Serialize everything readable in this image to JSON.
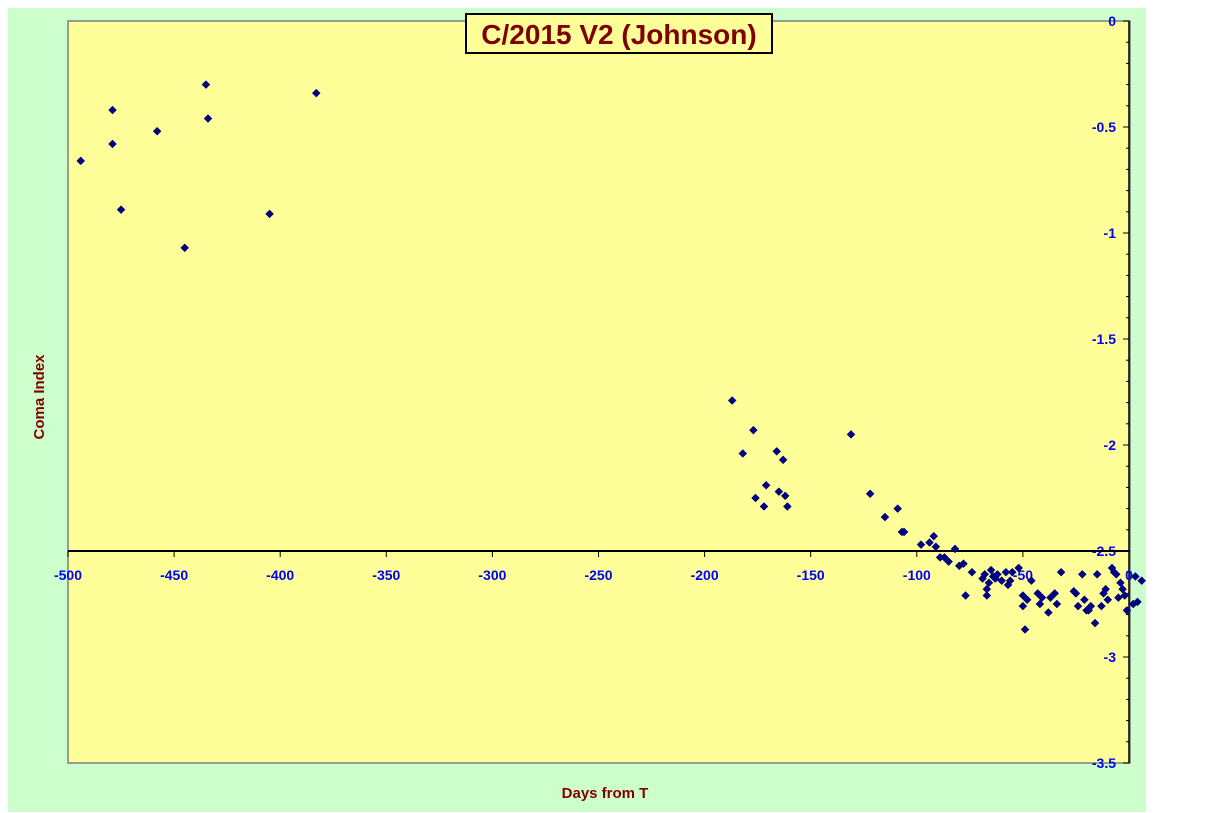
{
  "colors": {
    "outer_background": "#ccffcc",
    "plot_background": "#ffff99",
    "marker": "#000080",
    "axis_line": "#000000",
    "tick_label": "#0000ff",
    "title_text": "#800000",
    "title_box_fill": "#ffff99",
    "axis_title": "#800000"
  },
  "chart_data": {
    "type": "scatter",
    "title": "C/2015 V2 (Johnson)",
    "xlabel": "Days from  T",
    "ylabel": "Coma Index",
    "xlim": [
      -500,
      0
    ],
    "ylim": [
      -3.5,
      0
    ],
    "x_ticks": [
      -500,
      -450,
      -400,
      -350,
      -300,
      -250,
      -200,
      -150,
      -100,
      -50,
      0
    ],
    "x_tick_labels": [
      "-500",
      "-450",
      "-400",
      "-350",
      "-300",
      "-250",
      "-200",
      "-150",
      "-100",
      "-50",
      "0"
    ],
    "y_ticks": [
      0,
      -0.5,
      -1,
      -1.5,
      -2,
      -2.5,
      -3,
      -3.5
    ],
    "y_tick_labels": [
      "0",
      "-0.5",
      "-1",
      "-1.5",
      "-2",
      "-2.5",
      "-3",
      "-3.5"
    ],
    "x_axis_crosses_at": -2.5,
    "y_axis_position": "right",
    "marker": "diamond",
    "grid": false,
    "legend": "none",
    "series": [
      {
        "points": [
          [
            -494,
            -0.66
          ],
          [
            -479,
            -0.42
          ],
          [
            -479,
            -0.58
          ],
          [
            -475,
            -0.89
          ],
          [
            -458,
            -0.52
          ],
          [
            -445,
            -1.07
          ],
          [
            -435,
            -0.3
          ],
          [
            -434,
            -0.46
          ],
          [
            -405,
            -0.91
          ],
          [
            -383,
            -0.34
          ],
          [
            -187,
            -1.79
          ],
          [
            -182,
            -2.04
          ],
          [
            -177,
            -1.93
          ],
          [
            -176,
            -2.25
          ],
          [
            -172,
            -2.29
          ],
          [
            -171,
            -2.19
          ],
          [
            -166,
            -2.03
          ],
          [
            -165,
            -2.22
          ],
          [
            -163,
            -2.07
          ],
          [
            -162,
            -2.24
          ],
          [
            -161,
            -2.29
          ],
          [
            -131,
            -1.95
          ],
          [
            -122,
            -2.23
          ],
          [
            -115,
            -2.34
          ],
          [
            -109,
            -2.3
          ],
          [
            -107,
            -2.41
          ],
          [
            -106,
            -2.41
          ],
          [
            -98,
            -2.47
          ],
          [
            -94,
            -2.46
          ],
          [
            -92,
            -2.43
          ],
          [
            -91,
            -2.48
          ],
          [
            -89,
            -2.53
          ],
          [
            -87,
            -2.53
          ],
          [
            -85,
            -2.55
          ],
          [
            -82,
            -2.49
          ],
          [
            -80,
            -2.57
          ],
          [
            -78,
            -2.56
          ],
          [
            -77,
            -2.71
          ],
          [
            -74,
            -2.6
          ],
          [
            -69,
            -2.63
          ],
          [
            -68,
            -2.61
          ],
          [
            -67,
            -2.68
          ],
          [
            -67,
            -2.71
          ],
          [
            -66,
            -2.65
          ],
          [
            -65,
            -2.59
          ],
          [
            -64,
            -2.62
          ],
          [
            -63,
            -2.63
          ],
          [
            -62,
            -2.61
          ],
          [
            -60,
            -2.64
          ],
          [
            -58,
            -2.6
          ],
          [
            -57,
            -2.66
          ],
          [
            -56,
            -2.64
          ],
          [
            -55,
            -2.6
          ],
          [
            -52,
            -2.58
          ],
          [
            -50,
            -2.71
          ],
          [
            -50,
            -2.76
          ],
          [
            -49,
            -2.87
          ],
          [
            -48,
            -2.73
          ],
          [
            -46,
            -2.64
          ],
          [
            -43,
            -2.7
          ],
          [
            -42,
            -2.75
          ],
          [
            -41,
            -2.72
          ],
          [
            -38,
            -2.79
          ],
          [
            -37,
            -2.72
          ],
          [
            -35,
            -2.7
          ],
          [
            -34,
            -2.75
          ],
          [
            -32,
            -2.6
          ],
          [
            -26,
            -2.69
          ],
          [
            -25,
            -2.7
          ],
          [
            -24,
            -2.76
          ],
          [
            -22,
            -2.61
          ],
          [
            -21,
            -2.73
          ],
          [
            -20,
            -2.78
          ],
          [
            -19,
            -2.78
          ],
          [
            -18,
            -2.76
          ],
          [
            -16,
            -2.84
          ],
          [
            -15,
            -2.61
          ],
          [
            -13,
            -2.76
          ],
          [
            -12,
            -2.7
          ],
          [
            -11,
            -2.68
          ],
          [
            -10,
            -2.73
          ],
          [
            -8,
            -2.58
          ],
          [
            -7,
            -2.6
          ],
          [
            -6,
            -2.61
          ],
          [
            -5,
            -2.72
          ],
          [
            -4,
            -2.65
          ],
          [
            -3,
            -2.68
          ],
          [
            -2,
            -2.71
          ],
          [
            -1,
            -2.78
          ],
          [
            2,
            -2.75
          ],
          [
            3,
            -2.62
          ],
          [
            4,
            -2.74
          ],
          [
            6,
            -2.64
          ]
        ]
      }
    ]
  }
}
